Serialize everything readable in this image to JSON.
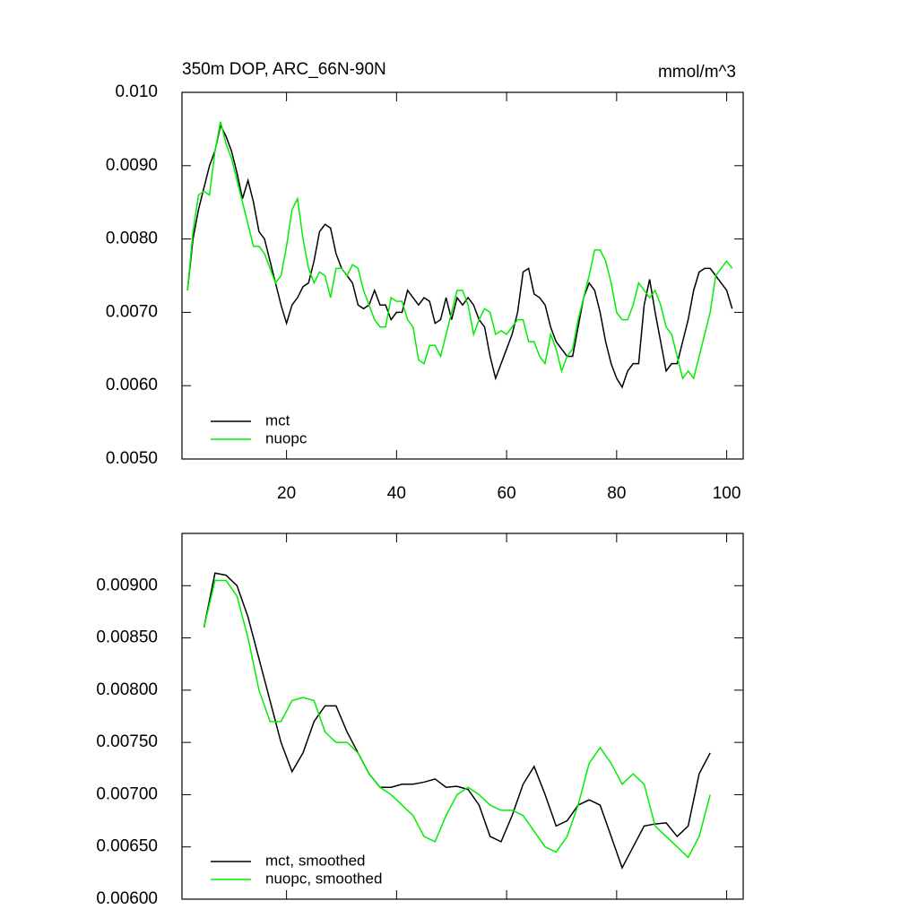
{
  "chart_data": [
    {
      "type": "line",
      "title": "350m DOP, ARC_66N-90N",
      "units": "mmol/m^3",
      "x": [
        2,
        3,
        4,
        5,
        6,
        7,
        8,
        9,
        10,
        11,
        12,
        13,
        14,
        15,
        16,
        17,
        18,
        19,
        20,
        21,
        22,
        23,
        24,
        25,
        26,
        27,
        28,
        29,
        30,
        31,
        32,
        33,
        34,
        35,
        36,
        37,
        38,
        39,
        40,
        41,
        42,
        43,
        44,
        45,
        46,
        47,
        48,
        49,
        50,
        51,
        52,
        53,
        54,
        55,
        56,
        57,
        58,
        59,
        60,
        61,
        62,
        63,
        64,
        65,
        66,
        67,
        68,
        69,
        70,
        71,
        72,
        73,
        74,
        75,
        76,
        77,
        78,
        79,
        80,
        81,
        82,
        83,
        84,
        85,
        86,
        87,
        88,
        89,
        90,
        91,
        92,
        93,
        94,
        95,
        96,
        97,
        98,
        99,
        100,
        101
      ],
      "series": [
        {
          "name": "mct",
          "color": "#000000",
          "values": [
            0.0073,
            0.008,
            0.0084,
            0.0087,
            0.009,
            0.0092,
            0.00955,
            0.0094,
            0.0092,
            0.0089,
            0.00855,
            0.0088,
            0.0085,
            0.0081,
            0.008,
            0.0077,
            0.0074,
            0.0071,
            0.00685,
            0.0071,
            0.0072,
            0.00735,
            0.0074,
            0.0077,
            0.0081,
            0.0082,
            0.00815,
            0.0078,
            0.0076,
            0.0075,
            0.0074,
            0.0071,
            0.00705,
            0.0071,
            0.0073,
            0.0071,
            0.0071,
            0.0069,
            0.007,
            0.007,
            0.0073,
            0.0072,
            0.0071,
            0.0072,
            0.00715,
            0.00685,
            0.0069,
            0.0072,
            0.0069,
            0.0072,
            0.0071,
            0.0072,
            0.0071,
            0.0069,
            0.0068,
            0.0064,
            0.0061,
            0.0063,
            0.0065,
            0.0067,
            0.007,
            0.00755,
            0.0076,
            0.00725,
            0.0072,
            0.0071,
            0.0068,
            0.0066,
            0.0065,
            0.0064,
            0.0064,
            0.0068,
            0.0072,
            0.0074,
            0.0073,
            0.007,
            0.0066,
            0.0063,
            0.0061,
            0.00598,
            0.0062,
            0.0063,
            0.0063,
            0.0071,
            0.00745,
            0.007,
            0.0066,
            0.0062,
            0.0063,
            0.0063,
            0.0066,
            0.0069,
            0.0073,
            0.00755,
            0.0076,
            0.0076,
            0.0075,
            0.0074,
            0.0073,
            0.00705
          ]
        },
        {
          "name": "nuopc",
          "color": "#00ee00",
          "values": [
            0.0073,
            0.0081,
            0.0086,
            0.00865,
            0.0086,
            0.0092,
            0.0096,
            0.0093,
            0.0091,
            0.0088,
            0.0085,
            0.0082,
            0.0079,
            0.0079,
            0.0078,
            0.0076,
            0.0074,
            0.0075,
            0.0079,
            0.0084,
            0.00855,
            0.008,
            0.0076,
            0.0074,
            0.00755,
            0.0075,
            0.0072,
            0.0076,
            0.0076,
            0.0075,
            0.00765,
            0.0076,
            0.0073,
            0.0071,
            0.0069,
            0.0068,
            0.0068,
            0.0072,
            0.00715,
            0.00715,
            0.0069,
            0.0068,
            0.00635,
            0.0063,
            0.00655,
            0.00655,
            0.0064,
            0.0067,
            0.007,
            0.0073,
            0.0073,
            0.0071,
            0.0067,
            0.0069,
            0.00705,
            0.007,
            0.0067,
            0.00675,
            0.0067,
            0.0068,
            0.0069,
            0.0069,
            0.0066,
            0.0066,
            0.0064,
            0.0063,
            0.0067,
            0.0065,
            0.0062,
            0.0064,
            0.0065,
            0.0069,
            0.0072,
            0.0075,
            0.00785,
            0.00785,
            0.0077,
            0.0074,
            0.007,
            0.0069,
            0.0069,
            0.0071,
            0.0074,
            0.0073,
            0.0072,
            0.0073,
            0.0071,
            0.0068,
            0.0067,
            0.0064,
            0.0061,
            0.0062,
            0.0061,
            0.0064,
            0.0067,
            0.007,
            0.0075,
            0.0076,
            0.0077,
            0.0076
          ]
        }
      ],
      "xlim": [
        1,
        103
      ],
      "xticks": [
        20,
        40,
        60,
        80,
        100
      ],
      "ylim": [
        0.005,
        0.01
      ],
      "yticks": [
        {
          "value": 0.005,
          "label": "0.0050"
        },
        {
          "value": 0.006,
          "label": "0.0060"
        },
        {
          "value": 0.007,
          "label": "0.0070"
        },
        {
          "value": 0.008,
          "label": "0.0080"
        },
        {
          "value": 0.009,
          "label": "0.0090"
        },
        {
          "value": 0.01,
          "label": "0.010"
        }
      ],
      "legend": "lower left"
    },
    {
      "type": "line",
      "x": [
        5,
        7,
        9,
        11,
        13,
        15,
        17,
        19,
        21,
        23,
        25,
        27,
        29,
        31,
        33,
        35,
        37,
        39,
        41,
        43,
        45,
        47,
        49,
        51,
        53,
        55,
        57,
        59,
        61,
        63,
        65,
        67,
        69,
        71,
        73,
        75,
        77,
        79,
        81,
        83,
        85,
        87,
        89,
        91,
        93,
        95,
        97
      ],
      "series": [
        {
          "name": "mct, smoothed",
          "color": "#000000",
          "values": [
            0.0086,
            0.00912,
            0.0091,
            0.009,
            0.0087,
            0.0083,
            0.0079,
            0.0075,
            0.00722,
            0.0074,
            0.0077,
            0.00785,
            0.00785,
            0.0076,
            0.0074,
            0.0072,
            0.00707,
            0.00707,
            0.0071,
            0.0071,
            0.00712,
            0.00715,
            0.00707,
            0.00708,
            0.00705,
            0.0069,
            0.0066,
            0.00655,
            0.0068,
            0.0071,
            0.00727,
            0.007,
            0.0067,
            0.00675,
            0.0069,
            0.00695,
            0.0069,
            0.0066,
            0.0063,
            0.0065,
            0.0067,
            0.00672,
            0.00673,
            0.0066,
            0.0067,
            0.0072,
            0.0074
          ]
        },
        {
          "name": "nuopc, smoothed",
          "color": "#00ee00",
          "values": [
            0.0086,
            0.00905,
            0.00905,
            0.0089,
            0.0085,
            0.008,
            0.0077,
            0.0077,
            0.0079,
            0.00793,
            0.0079,
            0.0076,
            0.0075,
            0.0075,
            0.0074,
            0.0072,
            0.00707,
            0.007,
            0.0069,
            0.0068,
            0.0066,
            0.00655,
            0.0068,
            0.007,
            0.00707,
            0.007,
            0.0069,
            0.00685,
            0.00685,
            0.0068,
            0.00665,
            0.0065,
            0.00645,
            0.0066,
            0.0069,
            0.0073,
            0.00745,
            0.0073,
            0.0071,
            0.0072,
            0.0071,
            0.0067,
            0.0066,
            0.0065,
            0.0064,
            0.0066,
            0.007
          ]
        }
      ],
      "xlim": [
        1,
        103
      ],
      "xticks": [
        20,
        40,
        60,
        80,
        100
      ],
      "xtick_labels": false,
      "ylim": [
        0.006,
        0.0095
      ],
      "yticks": [
        {
          "value": 0.006,
          "label": "0.00600"
        },
        {
          "value": 0.0065,
          "label": "0.00650"
        },
        {
          "value": 0.007,
          "label": "0.00700"
        },
        {
          "value": 0.0075,
          "label": "0.00750"
        },
        {
          "value": 0.008,
          "label": "0.00800"
        },
        {
          "value": 0.0085,
          "label": "0.00850"
        },
        {
          "value": 0.009,
          "label": "0.00900"
        }
      ],
      "legend": "lower left"
    }
  ]
}
